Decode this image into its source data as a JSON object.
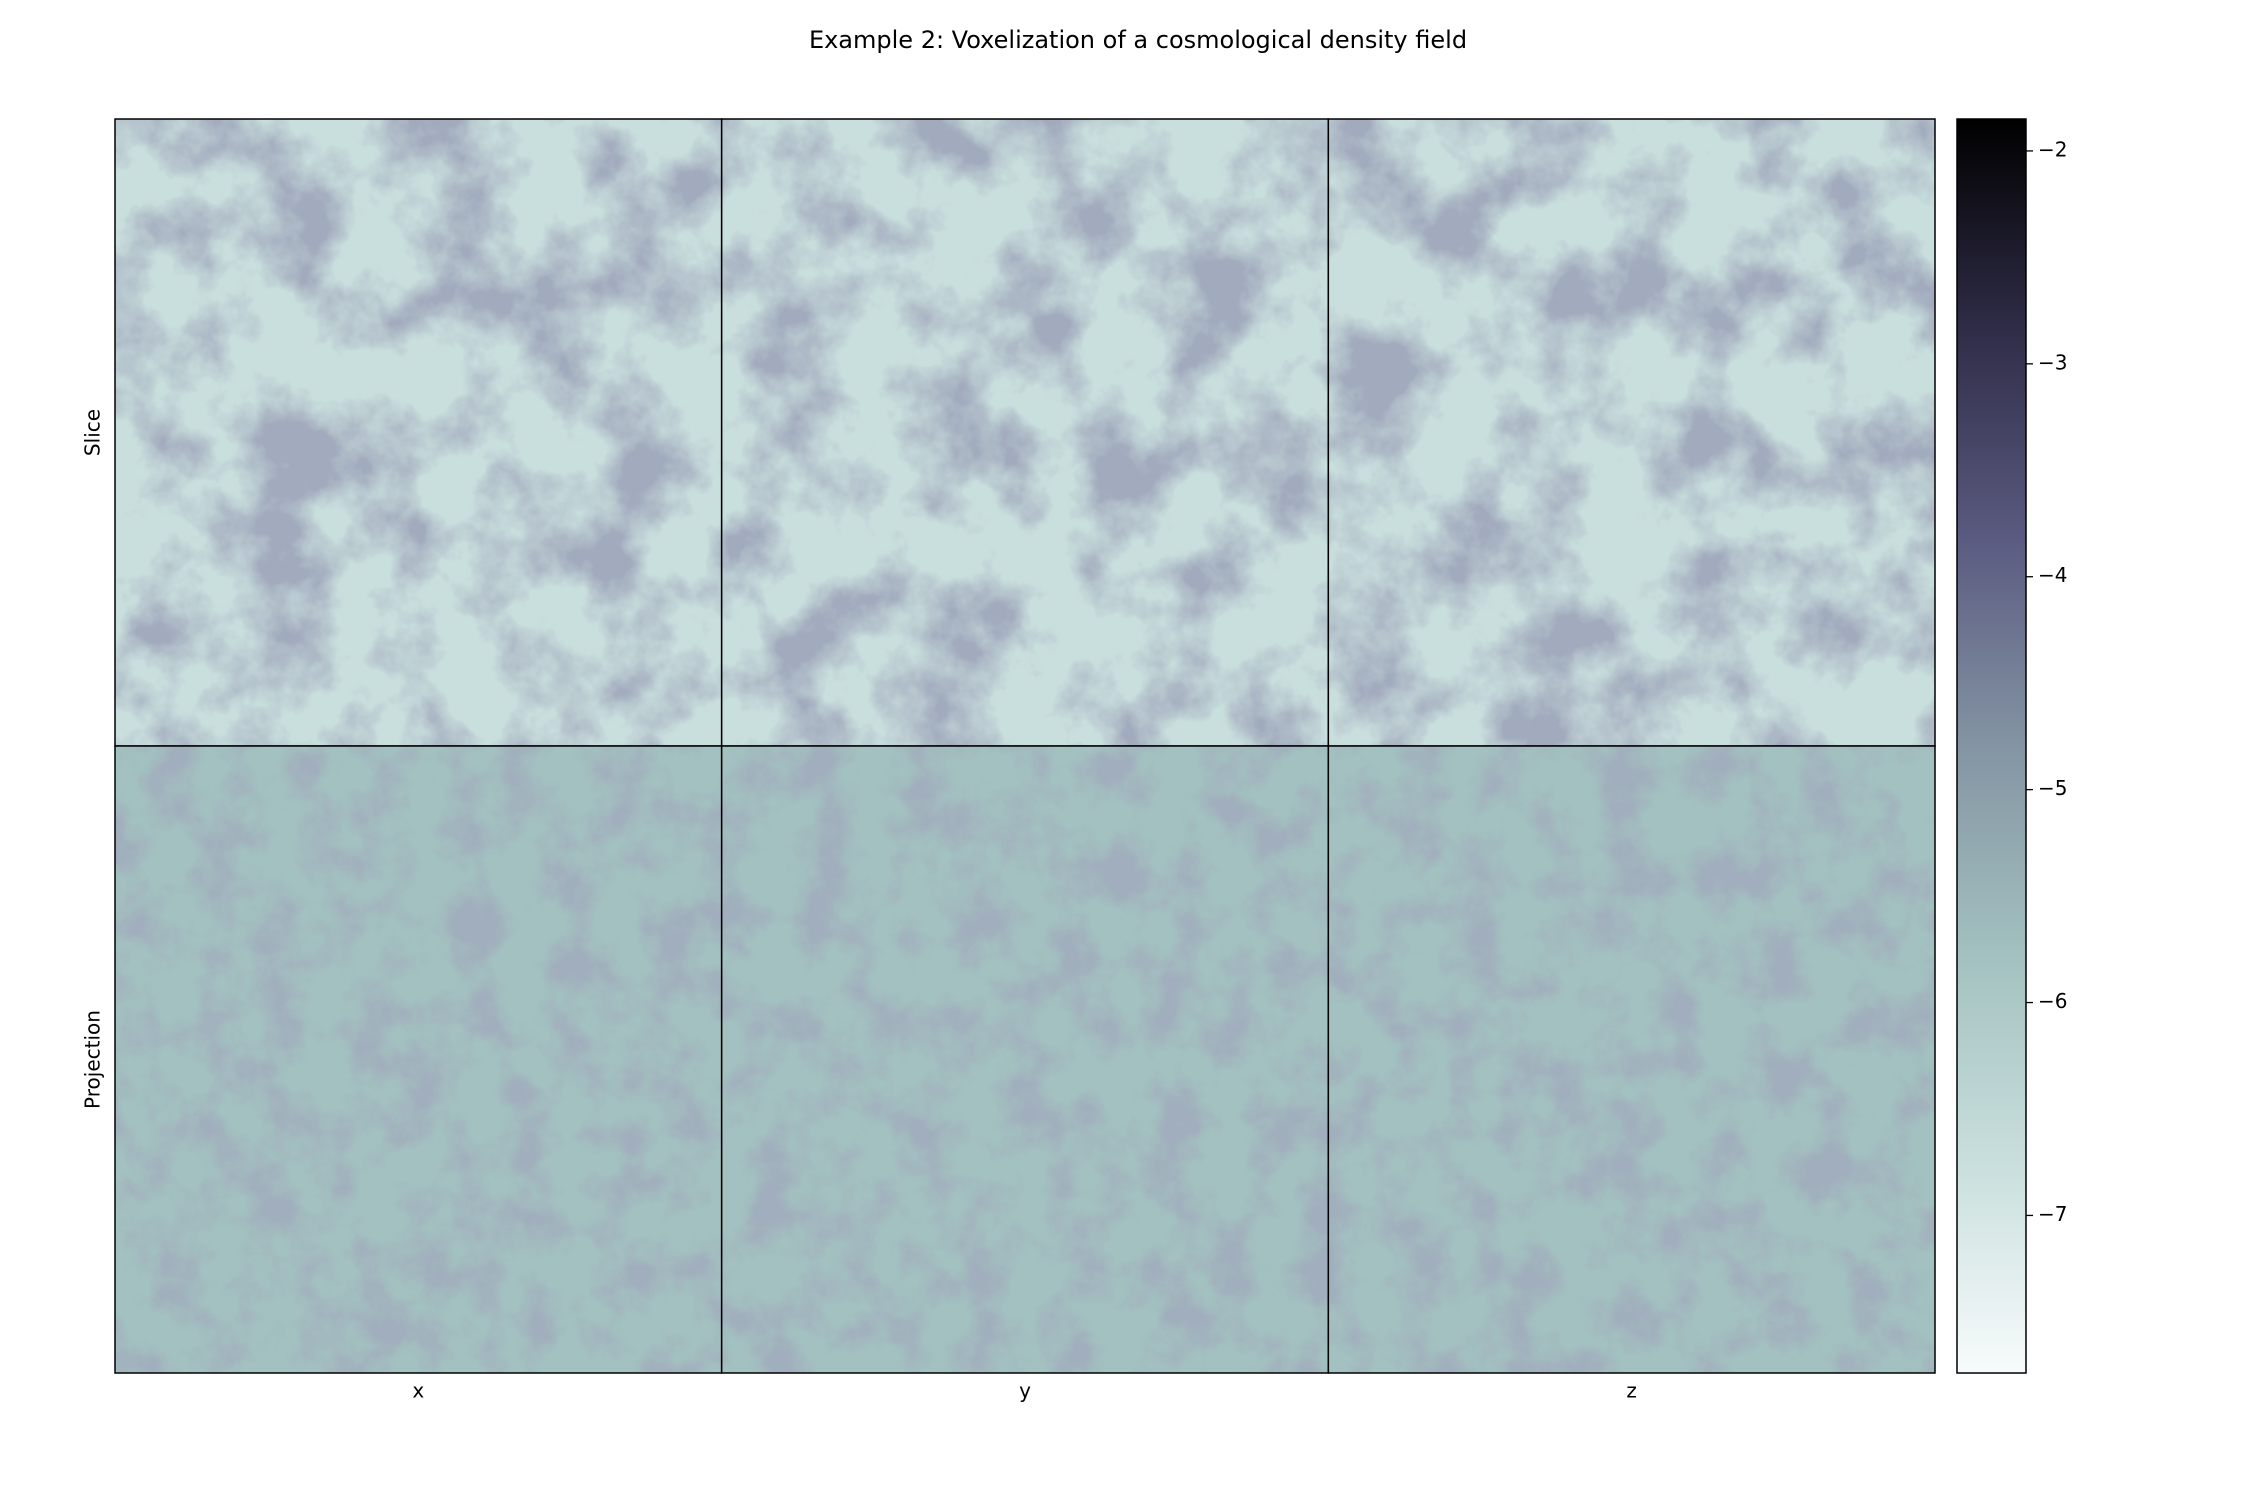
{
  "chart_data": {
    "type": "heatmap",
    "title": "Example 2: Voxelization of a cosmological density field",
    "row_labels": [
      "Slice",
      "Projection"
    ],
    "col_labels": [
      "x",
      "y",
      "z"
    ],
    "colormap": [
      "#f7fbfb",
      "#c9dfdd",
      "#a3c1c0",
      "#8494a3",
      "#5a5a80",
      "#2f2c47",
      "#000000"
    ],
    "clim": [
      -7.74,
      -1.85
    ],
    "cticks": [
      {
        "value": -2,
        "label": "−2"
      },
      {
        "value": -3,
        "label": "−3"
      },
      {
        "value": -4,
        "label": "−4"
      },
      {
        "value": -5,
        "label": "−5"
      },
      {
        "value": -6,
        "label": "−6"
      },
      {
        "value": -7,
        "label": "−7"
      }
    ]
  }
}
